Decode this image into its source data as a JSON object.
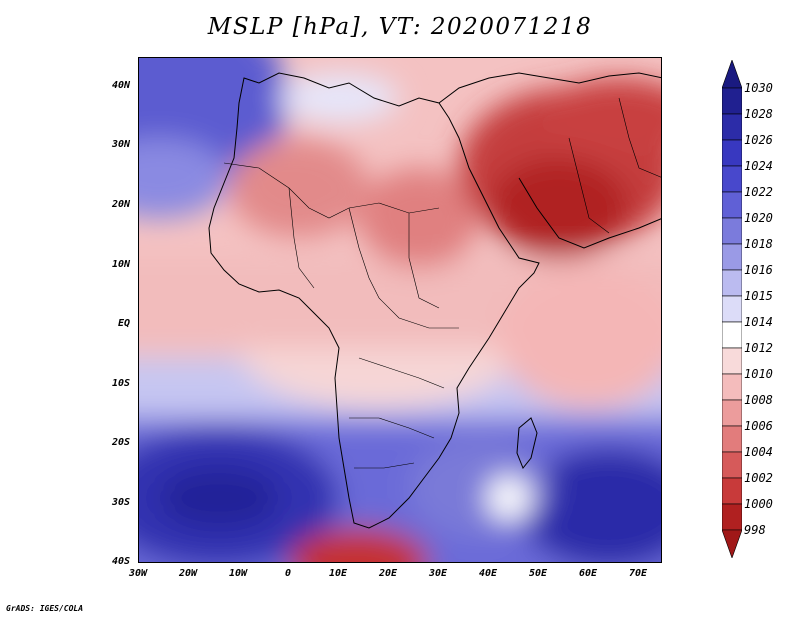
{
  "title": "MSLP [hPa], VT: 2020071218",
  "credit": "GrADS: IGES/COLA",
  "lat_labels": [
    "40N",
    "30N",
    "20N",
    "10N",
    "EQ",
    "10S",
    "20S",
    "30S",
    "40S"
  ],
  "lon_labels": [
    "30W",
    "20W",
    "10W",
    "0",
    "10E",
    "20E",
    "30E",
    "40E",
    "50E",
    "60E",
    "70E"
  ],
  "colorbar": {
    "levels": [
      "1030",
      "1028",
      "1026",
      "1024",
      "1022",
      "1020",
      "1018",
      "1016",
      "1015",
      "1014",
      "1012",
      "1010",
      "1008",
      "1006",
      "1004",
      "1002",
      "1000",
      "998"
    ],
    "colors": [
      "#202090",
      "#2c2ca8",
      "#3838c0",
      "#4848cc",
      "#6060d6",
      "#7b7bdc",
      "#9a9ae6",
      "#bbbbf0",
      "#dcdcf8",
      "#ffffff",
      "#f8dada",
      "#f4bcbc",
      "#ec9c9c",
      "#e27c7c",
      "#d65a5a",
      "#c83a3a",
      "#b02020"
    ],
    "top_arrow_color": "#1a1a80",
    "bottom_arrow_color": "#a01818"
  }
}
